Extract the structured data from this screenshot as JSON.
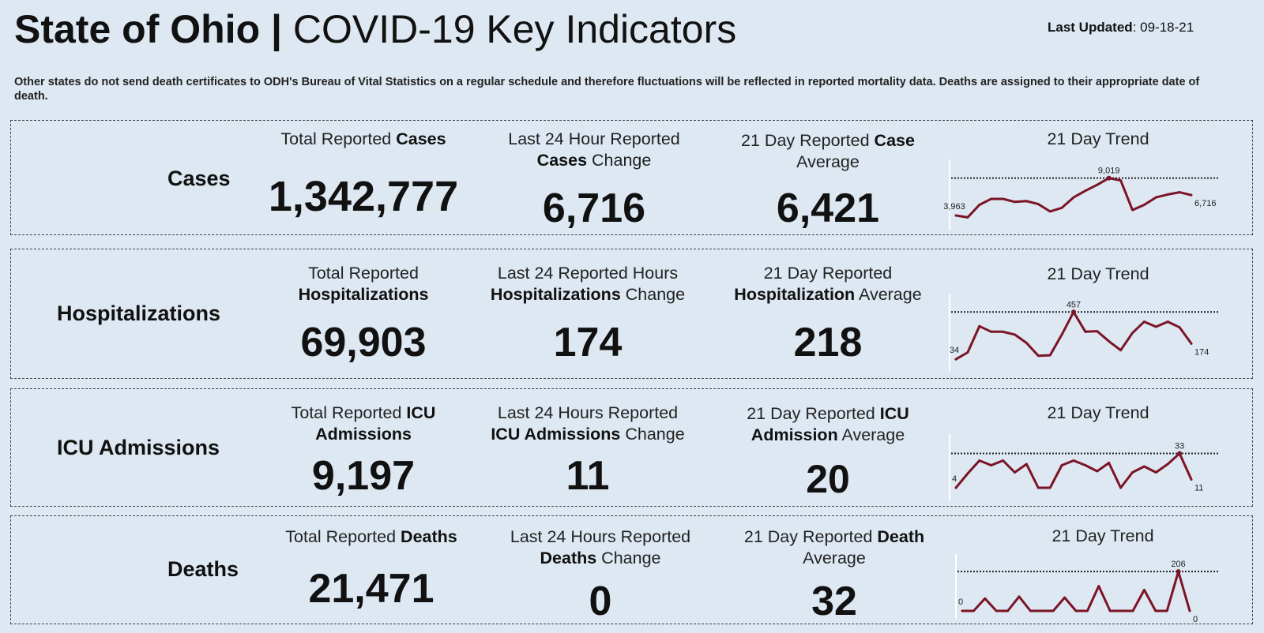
{
  "header": {
    "title_bold": "State of Ohio | ",
    "title_normal": "COVID-19  Key Indicators",
    "updated_label": "Last Updated",
    "updated_value": ": 09-18-21"
  },
  "note": "Other states do not send death certificates to ODH's Bureau of Vital Statistics on a regular schedule and therefore fluctuations will be reflected in reported mortality data. Deaths are assigned to their appropriate date of death.",
  "rows": [
    {
      "label": "Cases",
      "total": {
        "pre": "Total Reported ",
        "b1": "Cases",
        "post": "",
        "line2_b": "",
        "line2_post": "",
        "value": "1,342,777"
      },
      "last24": {
        "line1": "Last 24 Hour Reported",
        "line2_b": "Cases",
        "line2_post": " Change",
        "value": "6,716"
      },
      "avg": {
        "line1_pre": "21 Day Reported ",
        "line1_b": "Case",
        "line2_b": "",
        "line2_post": "Average",
        "value": "6,421"
      },
      "trend_title": "21 Day Trend"
    },
    {
      "label": "Hospitalizations",
      "total": {
        "line1": "Total Reported",
        "line2_b": "Hospitalizations",
        "value": "69,903"
      },
      "last24": {
        "line1": "Last 24 Reported Hours",
        "line2_b": "Hospitalizations",
        "line2_post": " Change",
        "value": "174"
      },
      "avg": {
        "line1": "21 Day Reported",
        "line2_b": "Hospitalization",
        "line2_post": " Average",
        "value": "218"
      },
      "trend_title": "21 Day Trend"
    },
    {
      "label": "ICU Admissions",
      "total": {
        "line1_pre": "Total Reported ",
        "line1_b": "ICU",
        "line2_b": "Admissions",
        "value": "9,197"
      },
      "last24": {
        "line1": "Last 24 Hours Reported",
        "line2_b": "ICU Admissions",
        "line2_post": " Change",
        "value": "11"
      },
      "avg": {
        "line1_pre": "21 Day Reported ",
        "line1_b": "ICU",
        "line2_b": "Admission",
        "line2_post": " Average",
        "value": "20"
      },
      "trend_title": "21 Day Trend"
    },
    {
      "label": "Deaths",
      "total": {
        "line1_pre": "Total Reported ",
        "line1_b": "Deaths",
        "value": "21,471"
      },
      "last24": {
        "line1": "Last 24 Hours Reported",
        "line2_b": "Deaths",
        "line2_post": " Change",
        "value": "0"
      },
      "avg": {
        "line1_pre": "21 Day Reported ",
        "line1_b": "Death",
        "line2_post": "Average",
        "value": "32"
      },
      "trend_title": "21 Day Trend"
    }
  ],
  "chart_data": [
    {
      "type": "line",
      "title": "21 Day Trend",
      "series_color": "#7b1426",
      "values": [
        3963,
        3700,
        5400,
        6200,
        6200,
        5800,
        5900,
        5500,
        4500,
        5000,
        6400,
        7300,
        8100,
        9019,
        8700,
        4700,
        5400,
        6400,
        6800,
        7100,
        6716
      ],
      "ylim": [
        3000,
        9400
      ],
      "labels": {
        "first": "3,963",
        "max": "9,019",
        "last": "6,716"
      },
      "reference_line": 9019
    },
    {
      "type": "line",
      "title": "21 Day Trend",
      "series_color": "#7b1426",
      "values": [
        34,
        95,
        330,
        280,
        280,
        255,
        180,
        65,
        70,
        255,
        457,
        280,
        285,
        195,
        115,
        270,
        370,
        325,
        370,
        320,
        174
      ],
      "ylim": [
        0,
        480
      ],
      "labels": {
        "first": "34",
        "max": "457",
        "last": "174"
      },
      "reference_line": 457
    },
    {
      "type": "line",
      "title": "21 Day Trend",
      "series_color": "#7b1426",
      "values": [
        4,
        16,
        27,
        23,
        27,
        17,
        24,
        4,
        4,
        23,
        27,
        23,
        18,
        25,
        4,
        17,
        22,
        17,
        24,
        33,
        11
      ],
      "ylim": [
        0,
        36
      ],
      "labels": {
        "first": "4",
        "max": "33",
        "last": "11"
      },
      "reference_line": 33
    },
    {
      "type": "line",
      "title": "21 Day Trend",
      "series_color": "#7b1426",
      "values": [
        0,
        0,
        65,
        0,
        0,
        75,
        0,
        0,
        0,
        70,
        0,
        0,
        130,
        0,
        0,
        0,
        110,
        0,
        0,
        206,
        0
      ],
      "ylim": [
        0,
        215
      ],
      "labels": {
        "first": "0",
        "max": "206",
        "last": "0"
      },
      "reference_line": 206
    }
  ]
}
